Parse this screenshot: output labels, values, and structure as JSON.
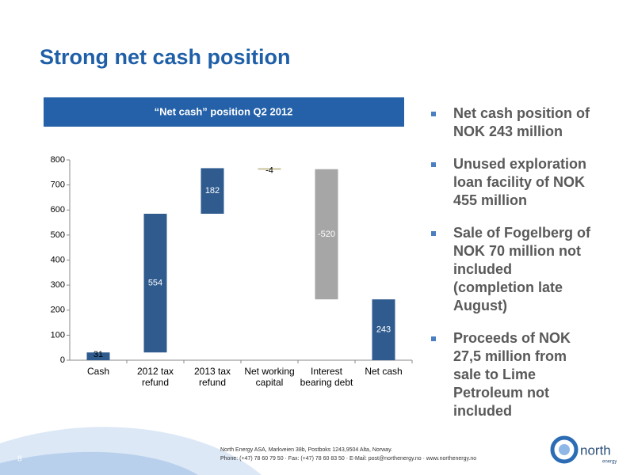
{
  "title": "Strong net cash position",
  "page_number": "8",
  "footer": [
    "North Energy ASA, Markveien 38b, Postboks 1243,9504 Alta, Norway.",
    "Phone: (+47) 78 60 79 50 · Fax: (+47) 78 60 83 50 · E-Mail: post@northenergy.no · www.northenergy.no"
  ],
  "logo": {
    "name": "north",
    "sub": "energy"
  },
  "bullets": [
    [
      "Net cash position of",
      "NOK 243 million"
    ],
    [
      "Unused exploration",
      "loan facility of  NOK",
      "455 million"
    ],
    [
      "Sale of Fogelberg of",
      "NOK 70 million not",
      "included",
      "(completion late",
      "August)"
    ],
    [
      "Proceeds of NOK",
      "27,5 million from",
      "sale to Lime",
      "Petroleum not",
      "included"
    ]
  ],
  "chart_data": {
    "type": "waterfall",
    "title": "“Net cash” position Q2 2012",
    "categories": [
      "Cash",
      "2012 tax refund",
      "2013 tax refund",
      "Net working capital",
      "Interest bearing debt",
      "Net cash"
    ],
    "values": [
      31,
      554,
      182,
      -4,
      -520,
      243
    ],
    "measure": [
      "relative",
      "relative",
      "relative",
      "relative",
      "relative",
      "total"
    ],
    "colors": [
      "#2f5b8f",
      "#2f5b8f",
      "#2f5b8f",
      "#c8c39b",
      "#a6a6a6",
      "#2f5b8f"
    ],
    "ylim": [
      0,
      800
    ],
    "yticks": [
      0,
      100,
      200,
      300,
      400,
      500,
      600,
      700,
      800
    ]
  }
}
